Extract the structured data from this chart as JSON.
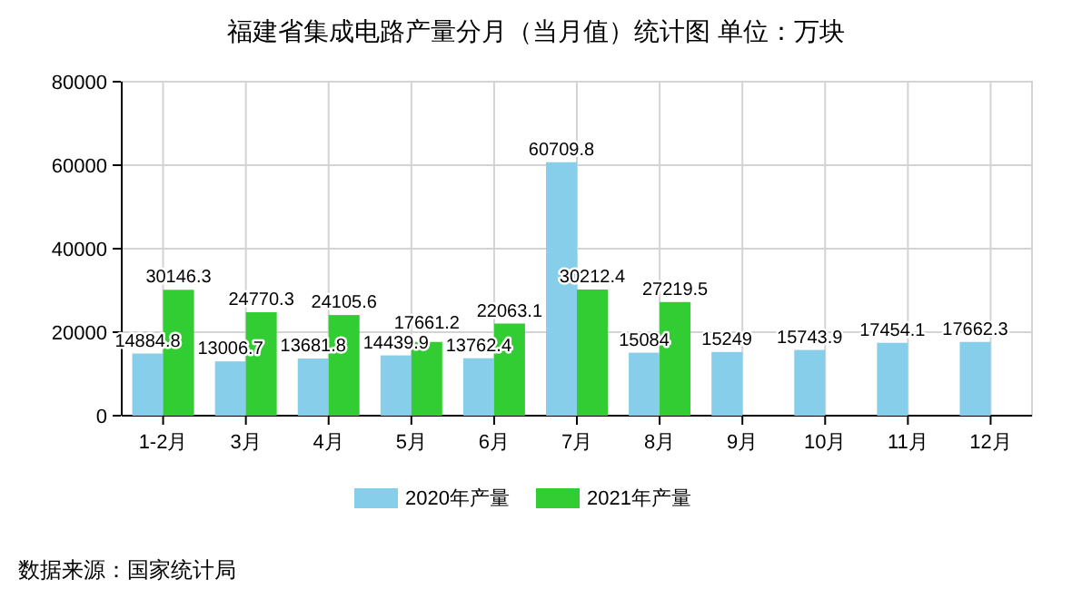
{
  "chart_data": {
    "type": "bar",
    "title": "福建省集成电路产量分月（当月值）统计图 单位：万块",
    "categories": [
      "1-2月",
      "3月",
      "4月",
      "5月",
      "6月",
      "7月",
      "8月",
      "9月",
      "10月",
      "11月",
      "12月"
    ],
    "series": [
      {
        "name": "2020年产量",
        "color": "#87ceeb",
        "values": [
          14884.8,
          13006.7,
          13681.8,
          14439.9,
          13762.4,
          60709.8,
          15084,
          15249,
          15743.9,
          17454.1,
          17662.3
        ]
      },
      {
        "name": "2021年产量",
        "color": "#32cd32",
        "values": [
          30146.3,
          24770.3,
          24105.6,
          17661.2,
          22063.1,
          30212.4,
          27219.5,
          null,
          null,
          null,
          null
        ]
      }
    ],
    "ylim": [
      0,
      80000
    ],
    "yticks": [
      0,
      20000,
      40000,
      60000,
      80000
    ],
    "grid": true,
    "legend": "bottom",
    "data_labels": true,
    "annotations": [
      "数据来源：国家统计局"
    ]
  }
}
